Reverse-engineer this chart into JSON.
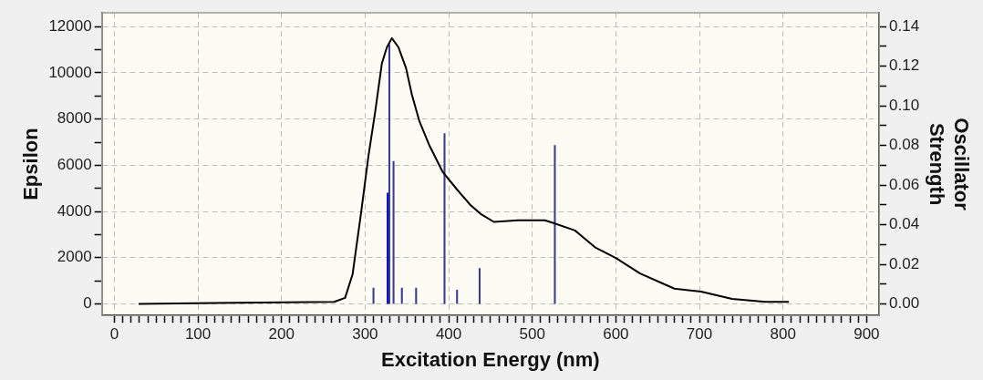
{
  "chart_data": {
    "type": "line",
    "xlabel": "Excitation Energy (nm)",
    "ylabel": "Epsilon",
    "y2label": "Oscillator\nStrength",
    "xlim": [
      -15,
      915
    ],
    "ylim": [
      -500,
      12600
    ],
    "y2lim": [
      -0.0058,
      0.147
    ],
    "xticks": [
      0,
      {
        "value": 10,
        "label": null
      },
      {
        "value": 20,
        "label": null
      },
      {
        "value": 30,
        "label": null
      },
      {
        "value": 40,
        "label": null
      },
      {
        "value": 50,
        "label": null
      },
      {
        "value": 60,
        "label": null
      },
      {
        "value": 70,
        "label": null
      },
      {
        "value": 80,
        "label": null
      },
      {
        "value": 90,
        "label": null
      },
      100,
      {
        "value": 110,
        "label": null
      },
      {
        "value": 120,
        "label": null
      },
      {
        "value": 130,
        "label": null
      },
      {
        "value": 140,
        "label": null
      },
      {
        "value": 150,
        "label": null
      },
      {
        "value": 160,
        "label": null
      },
      {
        "value": 170,
        "label": null
      },
      {
        "value": 180,
        "label": null
      },
      {
        "value": 190,
        "label": null
      },
      200,
      {
        "value": 210,
        "label": null
      },
      {
        "value": 220,
        "label": null
      },
      {
        "value": 230,
        "label": null
      },
      {
        "value": 240,
        "label": null
      },
      {
        "value": 250,
        "label": null
      },
      {
        "value": 260,
        "label": null
      },
      {
        "value": 270,
        "label": null
      },
      {
        "value": 280,
        "label": null
      },
      {
        "value": 290,
        "label": null
      },
      300,
      {
        "value": 310,
        "label": null
      },
      {
        "value": 320,
        "label": null
      },
      {
        "value": 330,
        "label": null
      },
      {
        "value": 340,
        "label": null
      },
      {
        "value": 350,
        "label": null
      },
      {
        "value": 360,
        "label": null
      },
      {
        "value": 370,
        "label": null
      },
      {
        "value": 380,
        "label": null
      },
      {
        "value": 390,
        "label": null
      },
      400,
      {
        "value": 410,
        "label": null
      },
      {
        "value": 420,
        "label": null
      },
      {
        "value": 430,
        "label": null
      },
      {
        "value": 440,
        "label": null
      },
      {
        "value": 450,
        "label": null
      },
      {
        "value": 460,
        "label": null
      },
      {
        "value": 470,
        "label": null
      },
      {
        "value": 480,
        "label": null
      },
      {
        "value": 490,
        "label": null
      },
      500,
      {
        "value": 510,
        "label": null
      },
      {
        "value": 520,
        "label": null
      },
      {
        "value": 530,
        "label": null
      },
      {
        "value": 540,
        "label": null
      },
      {
        "value": 550,
        "label": null
      },
      {
        "value": 560,
        "label": null
      },
      {
        "value": 570,
        "label": null
      },
      {
        "value": 580,
        "label": null
      },
      {
        "value": 590,
        "label": null
      },
      600,
      {
        "value": 610,
        "label": null
      },
      {
        "value": 620,
        "label": null
      },
      {
        "value": 630,
        "label": null
      },
      {
        "value": 640,
        "label": null
      },
      {
        "value": 650,
        "label": null
      },
      {
        "value": 660,
        "label": null
      },
      {
        "value": 670,
        "label": null
      },
      {
        "value": 680,
        "label": null
      },
      {
        "value": 690,
        "label": null
      },
      700,
      {
        "value": 710,
        "label": null
      },
      {
        "value": 720,
        "label": null
      },
      {
        "value": 730,
        "label": null
      },
      {
        "value": 740,
        "label": null
      },
      {
        "value": 750,
        "label": null
      },
      {
        "value": 760,
        "label": null
      },
      {
        "value": 770,
        "label": null
      },
      {
        "value": 780,
        "label": null
      },
      {
        "value": 790,
        "label": null
      },
      800,
      {
        "value": 810,
        "label": null
      },
      {
        "value": 820,
        "label": null
      },
      {
        "value": 830,
        "label": null
      },
      {
        "value": 840,
        "label": null
      },
      {
        "value": 850,
        "label": null
      },
      {
        "value": 860,
        "label": null
      },
      {
        "value": 870,
        "label": null
      },
      {
        "value": 880,
        "label": null
      },
      {
        "value": 890,
        "label": null
      },
      900
    ],
    "yticks": [
      0,
      {
        "value": 1000,
        "label": null
      },
      2000,
      {
        "value": 3000,
        "label": null
      },
      4000,
      {
        "value": 5000,
        "label": null
      },
      6000,
      {
        "value": 7000,
        "label": null
      },
      8000,
      {
        "value": 9000,
        "label": null
      },
      10000,
      {
        "value": 11000,
        "label": null
      },
      12000
    ],
    "y2ticks": [
      {
        "value": 0,
        "label": "0.00"
      },
      {
        "value": 0.01,
        "label": null
      },
      {
        "value": 0.02,
        "label": "0.02"
      },
      {
        "value": 0.03,
        "label": null
      },
      {
        "value": 0.04,
        "label": "0.04"
      },
      {
        "value": 0.05,
        "label": null
      },
      {
        "value": 0.06,
        "label": "0.06"
      },
      {
        "value": 0.07,
        "label": null
      },
      {
        "value": 0.08,
        "label": "0.08"
      },
      {
        "value": 0.09,
        "label": null
      },
      {
        "value": 0.1,
        "label": "0.10"
      },
      {
        "value": 0.11,
        "label": null
      },
      {
        "value": 0.12,
        "label": "0.12"
      },
      {
        "value": 0.13,
        "label": null
      },
      {
        "value": 0.14,
        "label": "0.14"
      }
    ],
    "grid": true,
    "legend": false,
    "marker": "none",
    "line_style": "solid",
    "series": [
      {
        "color": "#000000",
        "x": [
          29,
          145,
          263,
          276,
          285,
          295,
          304,
          312,
          320,
          326,
          332,
          340,
          349,
          356,
          365,
          377,
          393,
          410,
          426,
          438,
          454,
          483,
          515,
          527,
          551,
          576,
          600,
          629,
          670,
          702,
          739,
          779,
          807
        ],
        "values": [
          0,
          50,
          90,
          260,
          1280,
          3900,
          6400,
          8300,
          10400,
          11100,
          11500,
          11100,
          10200,
          9050,
          7900,
          6850,
          5700,
          4950,
          4280,
          3900,
          3550,
          3620,
          3620,
          3480,
          3180,
          2430,
          1990,
          1320,
          660,
          530,
          220,
          90,
          90
        ]
      },
      {
        "type": "bar",
        "axis": "y2",
        "colors": [
          "#3b3b8f",
          "#0000cc",
          "#3b3b8f",
          "#3b3b8f",
          "#3b3b8f",
          "#3b3b8f",
          "#3b3b8f",
          "#3b3b8f",
          "#3b3b8f",
          "#3b3b8f"
        ],
        "x": [
          310,
          327,
          329,
          334,
          344,
          361,
          395,
          410,
          437,
          527
        ],
        "values": [
          0.008,
          0.056,
          0.131,
          0.072,
          0.008,
          0.008,
          0.086,
          0.007,
          0.018,
          0.08
        ]
      }
    ]
  }
}
